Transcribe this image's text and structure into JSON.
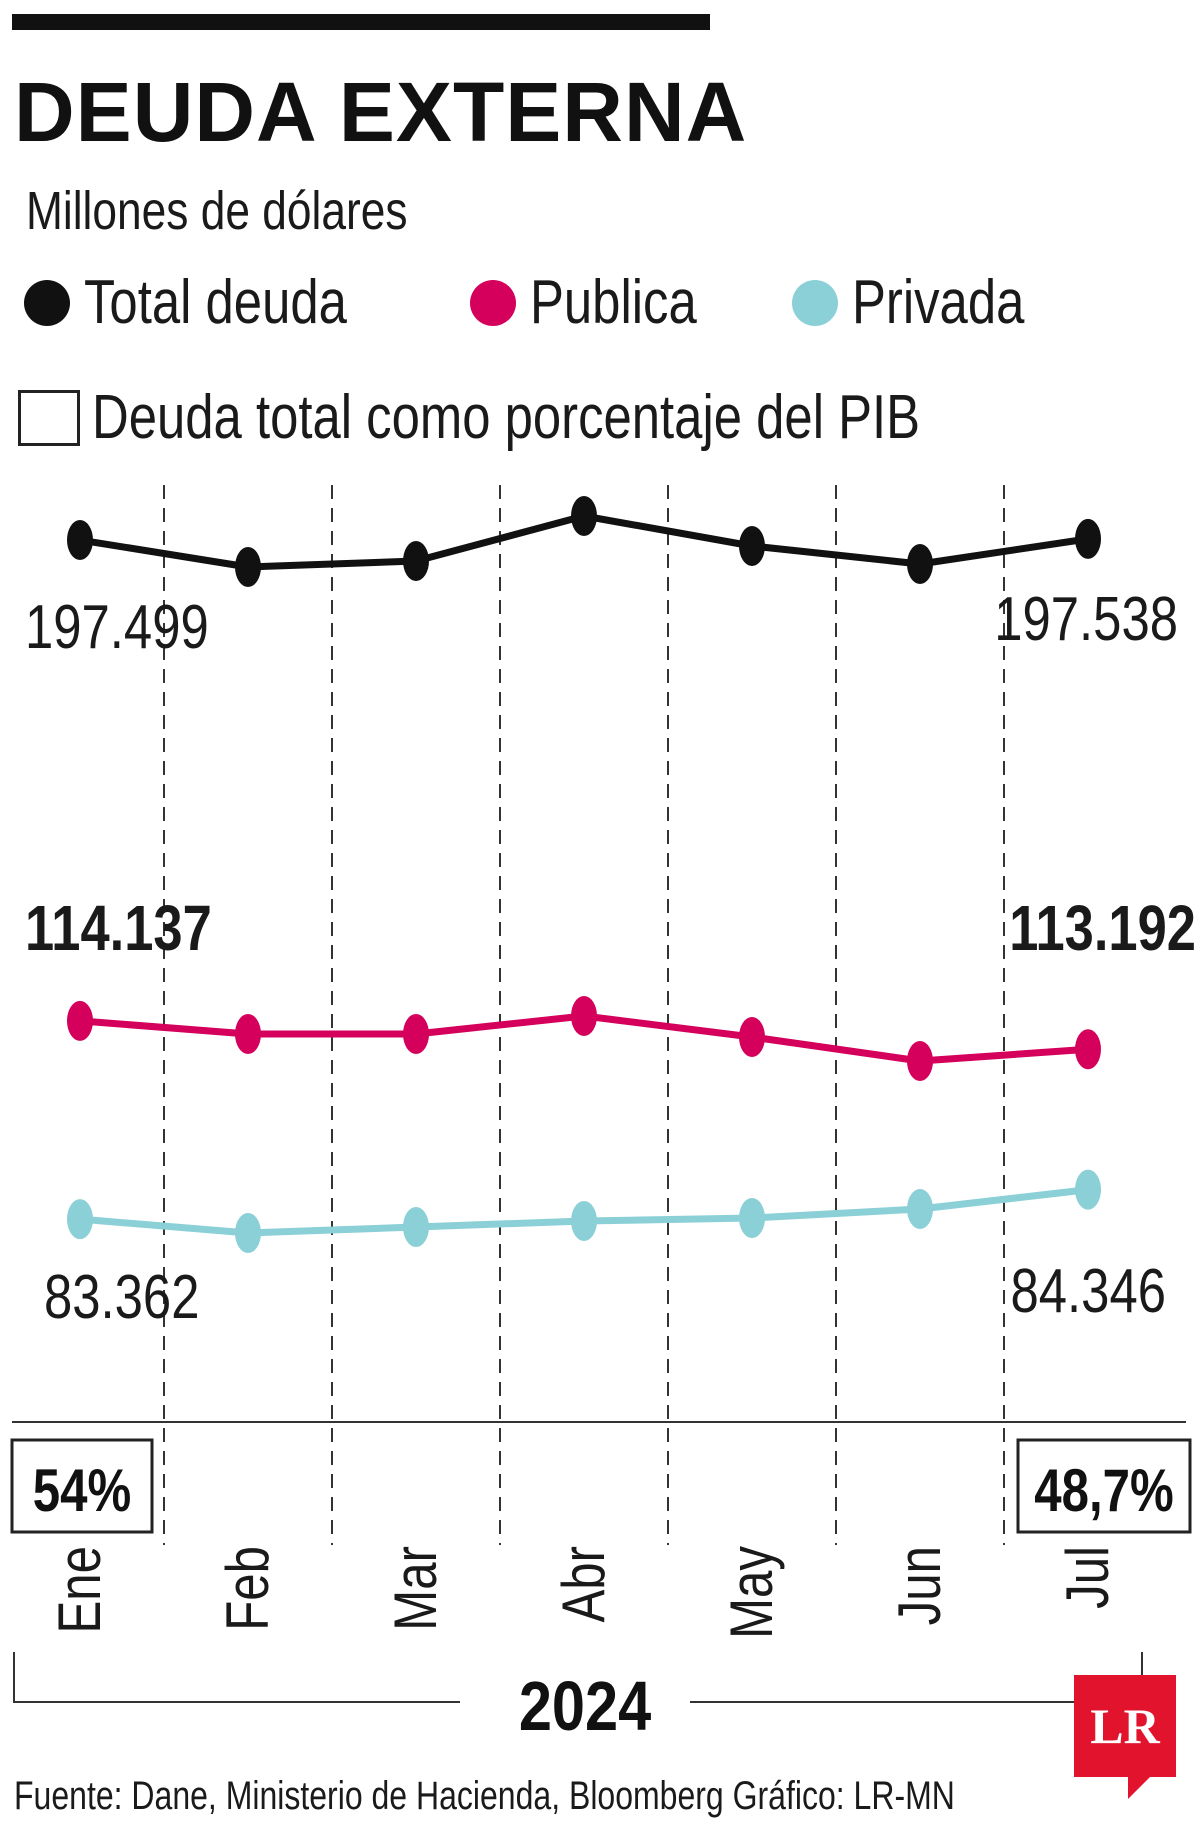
{
  "title": "DEUDA EXTERNA",
  "subtitle": "Millones de dólares",
  "legend": {
    "total": {
      "label": "Total deuda",
      "color": "#111111"
    },
    "publica": {
      "label": "Publica",
      "color": "#d4005c"
    },
    "privada": {
      "label": "Privada",
      "color": "#8ad0d6"
    },
    "pib": {
      "label": "Deuda total como porcentaje del PIB"
    }
  },
  "year_label": "2024",
  "source": "Fuente: Dane, Ministerio de Hacienda, Bloomberg  Gráfico: LR-MN",
  "logo_text": "LR",
  "chart_data": {
    "type": "line",
    "categories": [
      "Ene",
      "Feb",
      "Mar",
      "Abr",
      "May",
      "Jun",
      "Jul"
    ],
    "series": [
      {
        "name": "Total deuda",
        "key": "total",
        "color": "#111111",
        "values": [
          197499,
          196600,
          196800,
          198300,
          197300,
          196700,
          197538
        ],
        "first_label": "197.499",
        "last_label": "197.538",
        "label_bold": false
      },
      {
        "name": "Publica",
        "key": "publica",
        "color": "#d4005c",
        "values": [
          114137,
          113700,
          113700,
          114300,
          113600,
          112800,
          113192
        ],
        "first_label": "114.137",
        "last_label": "113.192",
        "label_bold": true
      },
      {
        "name": "Privada",
        "key": "privada",
        "color": "#8ad0d6",
        "values": [
          83362,
          82900,
          83100,
          83300,
          83400,
          83700,
          84346
        ],
        "first_label": "83.362",
        "last_label": "84.346",
        "label_bold": false
      }
    ],
    "pib_percent": {
      "first": "54%",
      "last": "48,7%"
    },
    "year": "2024"
  }
}
